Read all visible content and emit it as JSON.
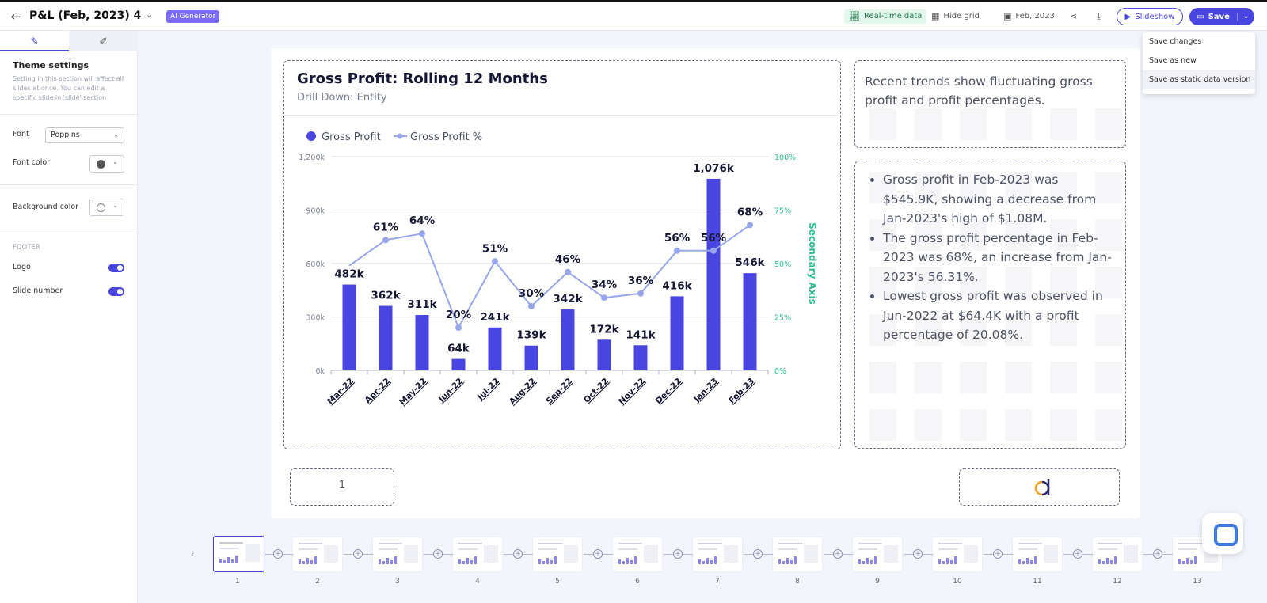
{
  "header": {
    "title": "P&L (Feb, 2023) 4",
    "ai_badge": "AI Generator",
    "realtime": "Real-time data",
    "hide_grid": "Hide grid",
    "date": "Feb, 2023",
    "slideshow": "Slideshow",
    "save": "Save"
  },
  "save_menu": [
    "Save changes",
    "Save as new",
    "Save as static data version"
  ],
  "sidebar": {
    "title": "Theme settings",
    "description": "Setting in this section will affect all slides at once. You can edit a specific slide in 'slide' section",
    "font_label": "Font",
    "font_value": "Poppins",
    "font_color_label": "Font color",
    "font_color": "#555555",
    "bg_color_label": "Background color",
    "bg_color": "#ffffff",
    "footer_heading": "FOOTER",
    "logo_label": "Logo",
    "slide_number_label": "Slide number",
    "logo_on": true,
    "slide_number_on": true
  },
  "slide": {
    "chart_title": "Gross Profit: Rolling 12 Months",
    "chart_subtitle": "Drill Down: Entity",
    "insight": "Recent trends show fluctuating gross profit and profit percentages.",
    "bullets": [
      "Gross profit in Feb-2023 was $545.9K, showing a decrease from Jan-2023's high of $1.08M.",
      "The gross profit percentage in Feb-2023 was 68%, an increase from Jan-2023's 56.31%.",
      "Lowest gross profit was observed in Jun-2022 at $64.4K with a profit percentage of 20.08%."
    ],
    "page_number": "1"
  },
  "chart_data": {
    "type": "bar",
    "categories": [
      "Mar-22",
      "Apr-22",
      "May-22",
      "Jun-22",
      "Jul-22",
      "Aug-22",
      "Sep-22",
      "Oct-22",
      "Nov-22",
      "Dec-22",
      "Jan-23",
      "Feb-23"
    ],
    "series": [
      {
        "name": "Gross Profit",
        "type": "bar",
        "axis": "primary",
        "color": "#4845e0",
        "values": [
          482,
          362,
          311,
          64,
          241,
          139,
          342,
          172,
          141,
          416,
          1076,
          546
        ],
        "labels": [
          "482k",
          "362k",
          "311k",
          "64k",
          "241k",
          "139k",
          "342k",
          "172k",
          "141k",
          "416k",
          "1,076k",
          "546k"
        ]
      },
      {
        "name": "Gross Profit %",
        "type": "line",
        "axis": "secondary",
        "color": "#98a7ec",
        "values": [
          null,
          61,
          64,
          20,
          51,
          30,
          46,
          34,
          36,
          56,
          56,
          68
        ],
        "labels": [
          "",
          "61%",
          "64%",
          "20%",
          "51%",
          "30%",
          "46%",
          "34%",
          "36%",
          "56%",
          "56%",
          "68%"
        ]
      }
    ],
    "first_point_percent": 49,
    "ylim": [
      0,
      1200
    ],
    "y_ticks": [
      "0k",
      "300k",
      "600k",
      "900k",
      "1,200k"
    ],
    "y2lim": [
      0,
      100
    ],
    "y2_ticks": [
      "0%",
      "25%",
      "50%",
      "75%",
      "100%"
    ],
    "y2label": "Secondary Axis",
    "y2_color": "#2bbf8f",
    "legend": "top-left"
  },
  "thumbnails": {
    "count": 13,
    "selected": 1,
    "numbers": [
      "1",
      "2",
      "3",
      "4",
      "5",
      "6",
      "7",
      "8",
      "9",
      "10",
      "11",
      "12",
      "13"
    ]
  }
}
